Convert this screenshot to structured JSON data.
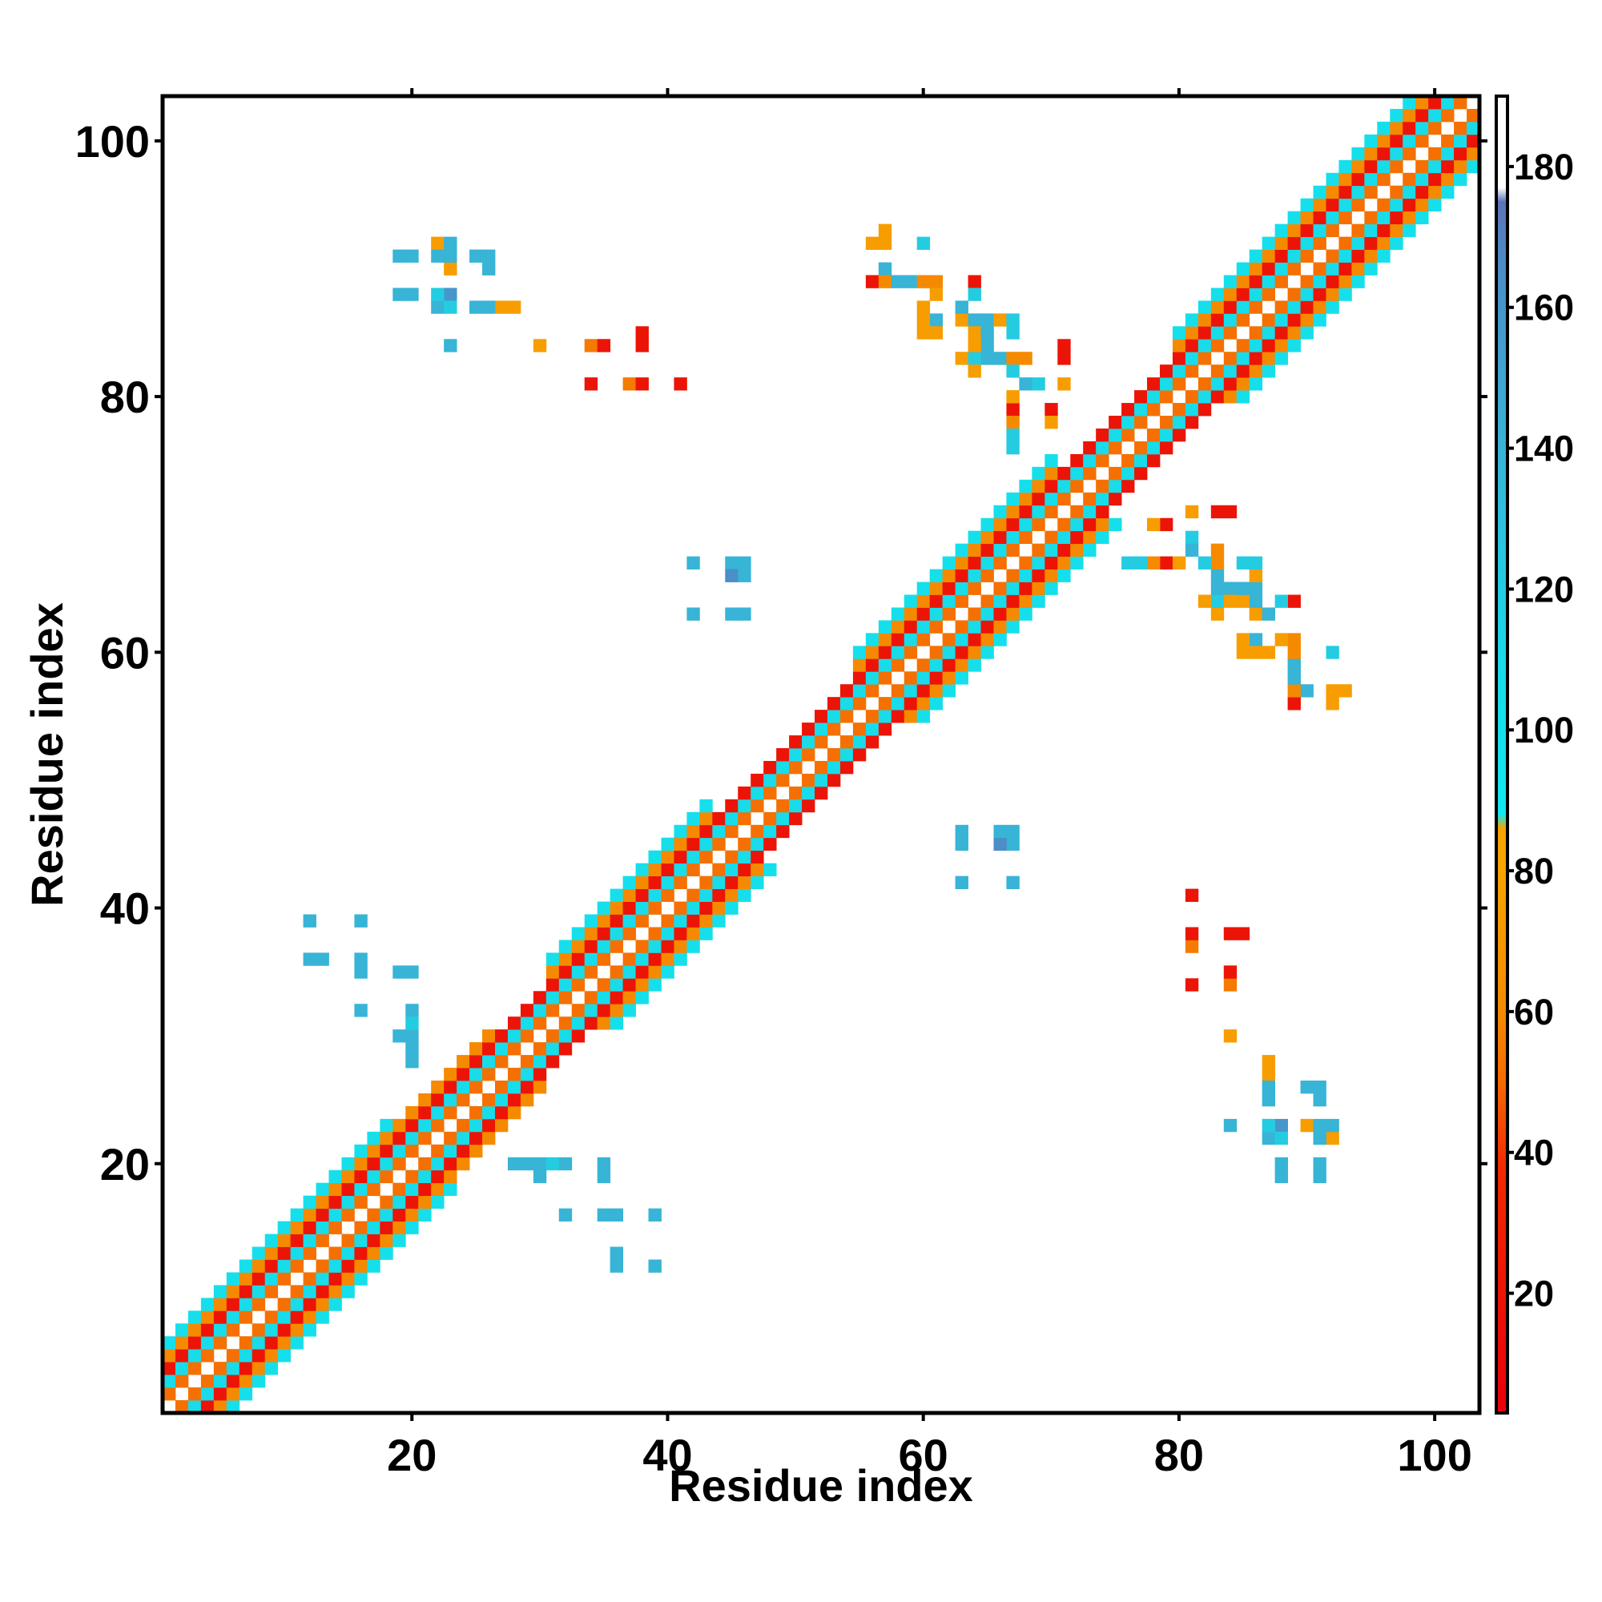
{
  "chart_data": {
    "type": "heatmap",
    "title": "",
    "xlabel": "Residue index",
    "ylabel": "Residue index",
    "xlim": [
      1,
      103
    ],
    "ylim": [
      1,
      103
    ],
    "x_ticks": [
      "20",
      "40",
      "60",
      "80",
      "100"
    ],
    "y_ticks": [
      "20",
      "40",
      "60",
      "80",
      "100"
    ],
    "grid": false,
    "colorbar": {
      "range": [
        3,
        190
      ],
      "ticks": [
        "20",
        "40",
        "60",
        "80",
        "100",
        "120",
        "140",
        "160",
        "180"
      ],
      "stops": [
        {
          "value": 3,
          "color": "#e8000b"
        },
        {
          "value": 38,
          "color": "#f02a00"
        },
        {
          "value": 50,
          "color": "#f56a00"
        },
        {
          "value": 60,
          "color": "#f58a00"
        },
        {
          "value": 80,
          "color": "#f7a300"
        },
        {
          "value": 86,
          "color": "#f7a300"
        },
        {
          "value": 88,
          "color": "#12e8f0"
        },
        {
          "value": 110,
          "color": "#1ad8e8"
        },
        {
          "value": 140,
          "color": "#37b4d6"
        },
        {
          "value": 165,
          "color": "#4b8ec8"
        },
        {
          "value": 175,
          "color": "#5b74b8"
        },
        {
          "value": 177,
          "color": "#ffffff"
        },
        {
          "value": 190,
          "color": "#ffffff"
        }
      ]
    },
    "diagonal_band": {
      "offsets": [
        {
          "offset": 1,
          "value": 52
        },
        {
          "offset": 2,
          "value": 105
        },
        {
          "offset": 3,
          "value": 20
        },
        {
          "offset": 4,
          "value": 60
        },
        {
          "offset": 5,
          "value": 100
        }
      ],
      "segments": [
        {
          "from": 1,
          "to": 18,
          "width": 5
        },
        {
          "from": 18,
          "to": 26,
          "width": 4
        },
        {
          "from": 26,
          "to": 31,
          "width": 3
        },
        {
          "from": 31,
          "to": 43,
          "width": 5
        },
        {
          "from": 43,
          "to": 55,
          "width": 3
        },
        {
          "from": 55,
          "to": 70,
          "width": 5
        },
        {
          "from": 70,
          "to": 80,
          "width": 3
        },
        {
          "from": 80,
          "to": 103,
          "width": 5
        }
      ]
    },
    "points": [
      [
        20,
        91,
        140
      ],
      [
        20,
        88,
        140
      ],
      [
        22,
        92,
        75
      ],
      [
        22,
        91,
        140
      ],
      [
        23,
        92,
        140
      ],
      [
        23,
        90,
        75
      ],
      [
        23,
        88,
        160
      ],
      [
        22,
        87,
        140
      ],
      [
        23,
        87,
        120
      ],
      [
        23,
        84,
        140
      ],
      [
        25,
        91,
        140
      ],
      [
        26,
        91,
        140
      ],
      [
        26,
        90,
        140
      ],
      [
        25,
        87,
        140
      ],
      [
        27,
        87,
        75
      ],
      [
        30,
        84,
        75
      ],
      [
        34,
        84,
        55
      ],
      [
        35,
        84,
        20
      ],
      [
        38,
        85,
        20
      ],
      [
        38,
        84,
        20
      ],
      [
        34,
        81,
        20
      ],
      [
        37,
        81,
        55
      ],
      [
        38,
        81,
        20
      ],
      [
        41,
        81,
        20
      ],
      [
        12,
        39,
        140
      ],
      [
        12,
        36,
        140
      ],
      [
        13,
        36,
        140
      ],
      [
        16,
        39,
        140
      ],
      [
        16,
        36,
        140
      ],
      [
        16,
        35,
        140
      ],
      [
        16,
        32,
        140
      ],
      [
        19,
        35,
        140
      ],
      [
        20,
        35,
        140
      ],
      [
        20,
        32,
        140
      ],
      [
        19,
        30,
        140
      ],
      [
        20,
        30,
        140
      ],
      [
        20,
        29,
        140
      ],
      [
        20,
        28,
        140
      ],
      [
        28,
        20,
        120
      ],
      [
        29,
        20,
        120
      ],
      [
        30,
        20,
        120
      ],
      [
        31,
        20,
        120
      ],
      [
        32,
        20,
        120
      ],
      [
        30,
        19,
        120
      ],
      [
        35,
        20,
        140
      ],
      [
        35,
        19,
        140
      ],
      [
        32,
        16,
        140
      ],
      [
        35,
        16,
        140
      ],
      [
        36,
        16,
        140
      ],
      [
        39,
        16,
        140
      ],
      [
        36,
        13,
        140
      ],
      [
        36,
        12,
        140
      ],
      [
        39,
        12,
        140
      ],
      [
        57,
        93,
        75
      ],
      [
        56,
        92,
        75
      ],
      [
        57,
        92,
        75
      ],
      [
        60,
        92,
        120
      ],
      [
        57,
        90,
        140
      ],
      [
        56,
        89,
        20
      ],
      [
        57,
        89,
        60
      ],
      [
        58,
        89,
        140
      ],
      [
        59,
        89,
        140
      ],
      [
        60,
        89,
        60
      ],
      [
        61,
        89,
        60
      ],
      [
        64,
        89,
        20
      ],
      [
        61,
        88,
        75
      ],
      [
        61,
        86,
        140
      ],
      [
        60,
        86,
        75
      ],
      [
        60,
        85,
        75
      ],
      [
        61,
        85,
        75
      ],
      [
        63,
        86,
        75
      ],
      [
        64,
        86,
        140
      ],
      [
        65,
        86,
        140
      ],
      [
        64,
        85,
        75
      ],
      [
        67,
        85,
        120
      ],
      [
        65,
        84,
        140
      ],
      [
        63,
        83,
        75
      ],
      [
        64,
        83,
        120
      ],
      [
        65,
        83,
        140
      ],
      [
        66,
        83,
        140
      ],
      [
        67,
        83,
        60
      ],
      [
        68,
        83,
        60
      ],
      [
        71,
        83,
        20
      ],
      [
        64,
        82,
        75
      ],
      [
        67,
        82,
        120
      ],
      [
        69,
        81,
        120
      ],
      [
        67,
        79,
        20
      ],
      [
        67,
        78,
        60
      ],
      [
        67,
        77,
        120
      ],
      [
        70,
        79,
        20
      ],
      [
        70,
        78,
        75
      ],
      [
        67,
        76,
        120
      ],
      [
        42,
        67,
        140
      ],
      [
        45,
        67,
        140
      ],
      [
        46,
        67,
        140
      ],
      [
        45,
        66,
        165
      ],
      [
        46,
        66,
        140
      ],
      [
        42,
        63,
        140
      ],
      [
        45,
        63,
        140
      ],
      [
        46,
        63,
        140
      ],
      [
        63,
        46,
        140
      ],
      [
        63,
        45,
        120
      ],
      [
        66,
        46,
        140
      ],
      [
        67,
        46,
        140
      ],
      [
        66,
        45,
        140
      ],
      [
        67,
        45,
        120
      ],
      [
        63,
        42,
        140
      ],
      [
        67,
        42,
        140
      ],
      [
        77,
        67,
        120
      ],
      [
        78,
        67,
        60
      ],
      [
        79,
        67,
        20
      ],
      [
        80,
        67,
        75
      ],
      [
        81,
        68,
        140
      ],
      [
        82,
        67,
        140
      ],
      [
        83,
        67,
        120
      ],
      [
        83,
        68,
        75
      ],
      [
        81,
        71,
        75
      ],
      [
        84,
        71,
        20
      ],
      [
        83,
        64,
        75
      ],
      [
        84,
        64,
        75
      ],
      [
        84,
        65,
        140
      ],
      [
        85,
        65,
        140
      ],
      [
        86,
        65,
        75
      ],
      [
        86,
        64,
        75
      ],
      [
        86,
        63,
        140
      ],
      [
        87,
        63,
        140
      ],
      [
        86,
        66,
        75
      ],
      [
        86,
        67,
        120
      ],
      [
        88,
        64,
        120
      ],
      [
        89,
        64,
        20
      ],
      [
        86,
        60,
        75
      ],
      [
        87,
        60,
        75
      ],
      [
        86,
        61,
        75
      ],
      [
        88,
        61,
        75
      ],
      [
        89,
        61,
        75
      ],
      [
        89,
        60,
        120
      ],
      [
        89,
        59,
        140
      ],
      [
        89,
        58,
        120
      ],
      [
        92,
        60,
        120
      ],
      [
        92,
        57,
        75
      ],
      [
        93,
        57,
        75
      ],
      [
        89,
        57,
        20
      ],
      [
        89,
        56,
        20
      ],
      [
        92,
        56,
        75
      ],
      [
        81,
        41,
        20
      ],
      [
        81,
        38,
        20
      ],
      [
        81,
        37,
        75
      ],
      [
        84,
        38,
        20
      ],
      [
        85,
        38,
        20
      ],
      [
        84,
        35,
        20
      ],
      [
        84,
        34,
        75
      ],
      [
        81,
        34,
        20
      ],
      [
        84,
        30,
        75
      ],
      [
        87,
        28,
        75
      ],
      [
        87,
        26,
        140
      ],
      [
        90,
        26,
        140
      ],
      [
        91,
        26,
        140
      ],
      [
        91,
        25,
        120
      ],
      [
        84,
        23,
        140
      ],
      [
        87,
        23,
        140
      ],
      [
        88,
        23,
        140
      ],
      [
        87,
        22,
        140
      ],
      [
        88,
        22,
        120
      ],
      [
        90,
        23,
        75
      ],
      [
        91,
        23,
        140
      ],
      [
        92,
        23,
        140
      ],
      [
        91,
        22,
        140
      ],
      [
        92,
        22,
        75
      ],
      [
        88,
        19,
        140
      ],
      [
        91,
        19,
        140
      ]
    ]
  }
}
